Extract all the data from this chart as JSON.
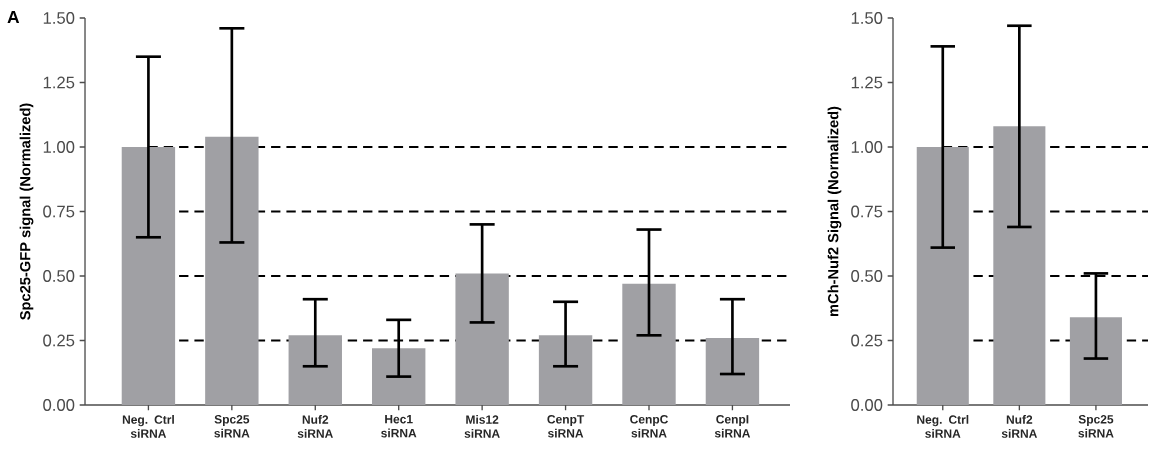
{
  "chart_data": [
    {
      "type": "bar",
      "annotations": [
        "A"
      ],
      "ylabel": "Spc25-GFP signal (Normalized)",
      "categories": [
        "Neg. Ctrl siRNA",
        "Spc25 siRNA",
        "Nuf2 siRNA",
        "Hec1 siRNA",
        "Mis12 siRNA",
        "CenpT siRNA",
        "CenpC siRNA",
        "CenpI siRNA"
      ],
      "values": [
        1.0,
        1.04,
        0.27,
        0.22,
        0.51,
        0.27,
        0.47,
        0.26
      ],
      "color": "#a0a0a4",
      "errors": [
        [
          0.65,
          1.35
        ],
        [
          0.63,
          1.46
        ],
        [
          0.15,
          0.41
        ],
        [
          0.11,
          0.33
        ],
        [
          0.32,
          0.7
        ],
        [
          0.15,
          0.4
        ],
        [
          0.27,
          0.68
        ],
        [
          0.12,
          0.41
        ]
      ],
      "ylim": [
        0,
        1.5
      ],
      "yticks": [
        {
          "value": 0,
          "label": "0.00"
        },
        {
          "value": 0.25,
          "label": "0.25"
        },
        {
          "value": 0.5,
          "label": "0.50"
        },
        {
          "value": 0.75,
          "label": "0.75"
        },
        {
          "value": 1,
          "label": "1.00"
        },
        {
          "value": 1.25,
          "label": "1.25"
        },
        {
          "value": 1.5,
          "label": "1.50"
        }
      ],
      "ref_lines": [
        {
          "axis": "y",
          "value": 0.25,
          "color": "#000000",
          "line_style": "dashed"
        },
        {
          "axis": "y",
          "value": 0.5,
          "color": "#000000",
          "line_style": "dashed"
        },
        {
          "axis": "y",
          "value": 0.75,
          "color": "#000000",
          "line_style": "dashed"
        },
        {
          "axis": "y",
          "value": 1,
          "color": "#000000",
          "line_style": "dashed"
        }
      ]
    },
    {
      "type": "bar",
      "ylabel": "mCh-Nuf2 Signal (Normalized)",
      "categories": [
        "Neg. Ctrl siRNA",
        "Nuf2 siRNA",
        "Spc25 siRNA"
      ],
      "values": [
        1.0,
        1.08,
        0.34
      ],
      "color": "#a0a0a4",
      "errors": [
        [
          0.61,
          1.39
        ],
        [
          0.69,
          1.47
        ],
        [
          0.18,
          0.51
        ]
      ],
      "ylim": [
        0,
        1.5
      ],
      "yticks": [
        {
          "value": 0,
          "label": "0.00"
        },
        {
          "value": 0.25,
          "label": "0.25"
        },
        {
          "value": 0.5,
          "label": "0.50"
        },
        {
          "value": 0.75,
          "label": "0.75"
        },
        {
          "value": 1,
          "label": "1.00"
        },
        {
          "value": 1.25,
          "label": "1.25"
        },
        {
          "value": 1.5,
          "label": "1.50"
        }
      ],
      "ref_lines": [
        {
          "axis": "y",
          "value": 0.25,
          "color": "#000000",
          "line_style": "dashed"
        },
        {
          "axis": "y",
          "value": 0.5,
          "color": "#000000",
          "line_style": "dashed"
        },
        {
          "axis": "y",
          "value": 0.75,
          "color": "#000000",
          "line_style": "dashed"
        },
        {
          "axis": "y",
          "value": 1,
          "color": "#000000",
          "line_style": "dashed"
        }
      ]
    }
  ]
}
